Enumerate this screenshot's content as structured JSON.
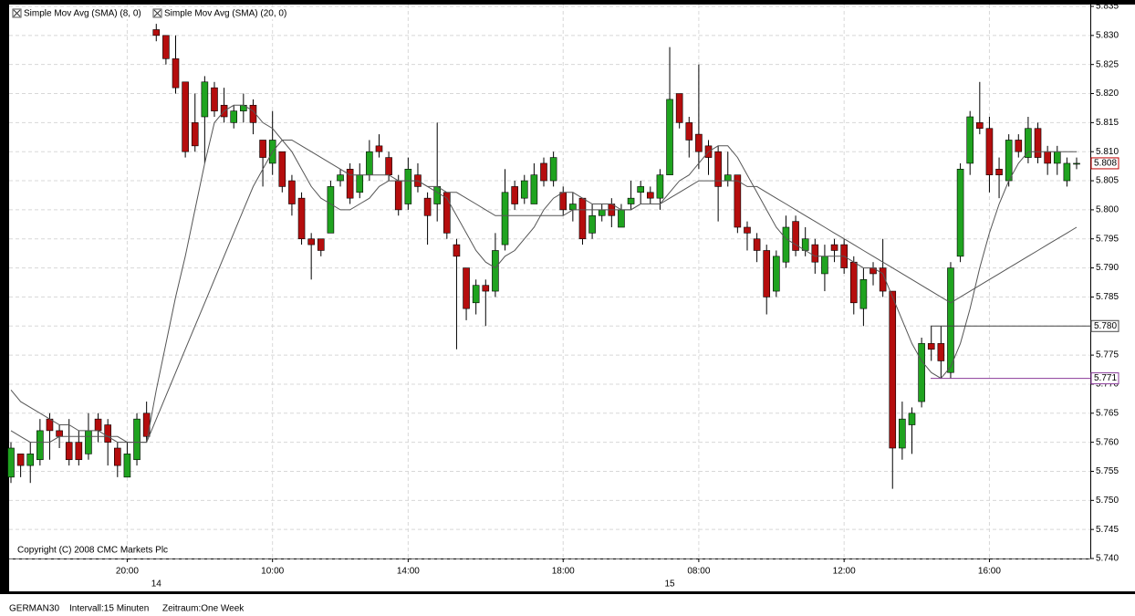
{
  "chart_data": {
    "type": "candlestick",
    "copyright": "Copyright (C) 2008 CMC Markets Plc",
    "footer": {
      "symbol": "GERMAN30",
      "interval": "Intervall:15 Minuten",
      "period": "Zeitraum:One Week"
    },
    "up_color": "#1fa31f",
    "down_color": "#b50d0d",
    "grid": true,
    "categories": [
      null,
      null,
      null,
      null,
      null,
      null,
      null,
      null,
      null,
      null,
      null,
      null,
      "20:00",
      null,
      null,
      null,
      null,
      null,
      null,
      null,
      null,
      null,
      null,
      null,
      null,
      null,
      null,
      "10:00",
      null,
      null,
      null,
      null,
      null,
      null,
      null,
      null,
      null,
      null,
      null,
      null,
      null,
      "14:00",
      null,
      null,
      null,
      null,
      null,
      null,
      null,
      null,
      null,
      null,
      null,
      null,
      null,
      null,
      null,
      "18:00",
      null,
      null,
      null,
      null,
      null,
      null,
      null,
      null,
      null,
      null,
      null,
      null,
      null,
      "08:00",
      null,
      null,
      null,
      null,
      null,
      null,
      null,
      null,
      null,
      null,
      null,
      null,
      null,
      null,
      "12:00",
      null,
      null,
      null,
      null,
      null,
      null,
      null,
      null,
      null,
      null,
      null,
      null,
      null,
      null,
      "16:00",
      null,
      null,
      null,
      null,
      null,
      null,
      null,
      null,
      null
    ],
    "day_labels": [
      null,
      null,
      null,
      null,
      null,
      null,
      null,
      null,
      null,
      null,
      null,
      null,
      null,
      null,
      null,
      "14",
      null,
      null,
      null,
      null,
      null,
      null,
      null,
      null,
      null,
      null,
      null,
      null,
      null,
      null,
      null,
      null,
      null,
      null,
      null,
      null,
      null,
      null,
      null,
      null,
      null,
      null,
      null,
      null,
      null,
      null,
      null,
      null,
      null,
      null,
      null,
      null,
      null,
      null,
      null,
      null,
      null,
      null,
      null,
      null,
      null,
      null,
      null,
      null,
      null,
      null,
      null,
      null,
      "15",
      null,
      null,
      null,
      null,
      null,
      null,
      null,
      null,
      null,
      null,
      null,
      null,
      null,
      null,
      null,
      null,
      null,
      null,
      null,
      null,
      null,
      null,
      null,
      null,
      null,
      null,
      null,
      null,
      null,
      null,
      null,
      null,
      null,
      null,
      null,
      null,
      null,
      null,
      null,
      null,
      null,
      null
    ],
    "open": [
      5.754,
      5.758,
      5.756,
      5.757,
      5.764,
      5.762,
      5.76,
      5.76,
      5.758,
      5.764,
      5.763,
      5.759,
      5.754,
      5.757,
      5.765,
      5.831,
      5.83,
      5.826,
      5.822,
      5.815,
      5.816,
      5.821,
      5.818,
      5.815,
      5.817,
      5.818,
      5.812,
      5.808,
      5.81,
      5.805,
      5.802,
      5.795,
      5.795,
      5.796,
      5.805,
      5.807,
      5.803,
      5.806,
      5.811,
      5.809,
      5.805,
      5.801,
      5.806,
      5.802,
      5.801,
      5.803,
      5.794,
      5.79,
      5.784,
      5.787,
      5.786,
      5.794,
      5.804,
      5.802,
      5.801,
      5.808,
      5.805,
      5.803,
      5.8,
      5.802,
      5.796,
      5.799,
      5.801,
      5.797,
      5.801,
      5.803,
      5.803,
      5.802,
      5.806,
      5.82,
      5.815,
      5.813,
      5.811,
      5.81,
      5.805,
      5.806,
      5.797,
      5.795,
      5.793,
      5.786,
      5.791,
      5.798,
      5.793,
      5.794,
      5.789,
      5.794,
      5.794,
      5.791,
      5.783,
      5.79,
      5.79,
      5.786,
      5.759,
      5.763,
      5.767,
      5.777,
      5.777,
      5.772,
      5.792,
      5.808,
      5.815,
      5.814,
      5.807,
      5.805,
      5.812,
      5.809,
      5.814,
      5.81,
      5.808,
      5.805,
      5.808
    ],
    "high": [
      5.76,
      5.758,
      5.76,
      5.764,
      5.765,
      5.763,
      5.764,
      5.762,
      5.765,
      5.765,
      5.764,
      5.76,
      5.76,
      5.765,
      5.767,
      5.832,
      5.83,
      5.83,
      5.822,
      5.82,
      5.823,
      5.822,
      5.821,
      5.818,
      5.82,
      5.819,
      5.812,
      5.817,
      5.81,
      5.806,
      5.803,
      5.796,
      5.795,
      5.805,
      5.807,
      5.808,
      5.808,
      5.812,
      5.813,
      5.81,
      5.806,
      5.809,
      5.808,
      5.803,
      5.815,
      5.803,
      5.795,
      5.79,
      5.788,
      5.788,
      5.796,
      5.807,
      5.805,
      5.806,
      5.808,
      5.809,
      5.81,
      5.804,
      5.803,
      5.802,
      5.801,
      5.801,
      5.802,
      5.801,
      5.805,
      5.805,
      5.804,
      5.807,
      5.828,
      5.82,
      5.816,
      5.825,
      5.812,
      5.811,
      5.81,
      5.806,
      5.798,
      5.796,
      5.794,
      5.793,
      5.799,
      5.799,
      5.797,
      5.795,
      5.794,
      5.795,
      5.795,
      5.792,
      5.79,
      5.791,
      5.795,
      5.786,
      5.767,
      5.766,
      5.778,
      5.78,
      5.78,
      5.791,
      5.808,
      5.817,
      5.822,
      5.816,
      5.809,
      5.813,
      5.813,
      5.816,
      5.815,
      5.811,
      5.811,
      5.809,
      5.809
    ],
    "low": [
      5.753,
      5.754,
      5.753,
      5.756,
      5.757,
      5.759,
      5.756,
      5.756,
      5.757,
      5.76,
      5.756,
      5.754,
      5.754,
      5.756,
      5.76,
      5.829,
      5.825,
      5.82,
      5.809,
      5.81,
      5.808,
      5.816,
      5.815,
      5.814,
      5.815,
      5.813,
      5.804,
      5.806,
      5.803,
      5.799,
      5.794,
      5.788,
      5.792,
      5.796,
      5.804,
      5.801,
      5.802,
      5.805,
      5.809,
      5.805,
      5.799,
      5.8,
      5.803,
      5.794,
      5.798,
      5.795,
      5.776,
      5.781,
      5.782,
      5.78,
      5.785,
      5.793,
      5.8,
      5.801,
      5.801,
      5.804,
      5.804,
      5.799,
      5.798,
      5.794,
      5.795,
      5.798,
      5.797,
      5.797,
      5.8,
      5.801,
      5.801,
      5.8,
      5.806,
      5.814,
      5.809,
      5.807,
      5.806,
      5.798,
      5.804,
      5.796,
      5.793,
      5.791,
      5.782,
      5.785,
      5.79,
      5.792,
      5.792,
      5.789,
      5.786,
      5.791,
      5.789,
      5.782,
      5.78,
      5.787,
      5.785,
      5.752,
      5.757,
      5.758,
      5.766,
      5.774,
      5.771,
      5.771,
      5.791,
      5.806,
      5.813,
      5.803,
      5.802,
      5.804,
      5.809,
      5.808,
      5.808,
      5.806,
      5.806,
      5.804,
      5.807
    ],
    "close": [
      5.759,
      5.756,
      5.758,
      5.762,
      5.762,
      5.761,
      5.757,
      5.757,
      5.762,
      5.762,
      5.76,
      5.756,
      5.758,
      5.764,
      5.761,
      5.83,
      5.826,
      5.821,
      5.81,
      5.811,
      5.822,
      5.817,
      5.816,
      5.817,
      5.818,
      5.815,
      5.809,
      5.812,
      5.804,
      5.801,
      5.795,
      5.794,
      5.793,
      5.804,
      5.806,
      5.802,
      5.806,
      5.81,
      5.81,
      5.806,
      5.8,
      5.807,
      5.804,
      5.799,
      5.804,
      5.796,
      5.792,
      5.783,
      5.787,
      5.786,
      5.793,
      5.803,
      5.801,
      5.805,
      5.806,
      5.805,
      5.809,
      5.8,
      5.801,
      5.795,
      5.799,
      5.8,
      5.799,
      5.8,
      5.802,
      5.804,
      5.802,
      5.806,
      5.819,
      5.815,
      5.812,
      5.81,
      5.809,
      5.804,
      5.806,
      5.797,
      5.796,
      5.793,
      5.785,
      5.792,
      5.797,
      5.793,
      5.795,
      5.791,
      5.792,
      5.793,
      5.79,
      5.784,
      5.788,
      5.789,
      5.786,
      5.759,
      5.764,
      5.765,
      5.777,
      5.776,
      5.774,
      5.79,
      5.807,
      5.816,
      5.814,
      5.806,
      5.806,
      5.812,
      5.81,
      5.814,
      5.809,
      5.808,
      5.81,
      5.808,
      5.808
    ],
    "series": [
      {
        "name": "Simple Mov Avg (SMA) (8, 0)",
        "color": "#555555",
        "values": [
          5.762,
          5.761,
          5.76,
          5.76,
          5.76,
          5.761,
          5.761,
          5.761,
          5.761,
          5.761,
          5.761,
          5.76,
          5.76,
          5.76,
          5.76,
          5.769,
          5.777,
          5.785,
          5.792,
          5.8,
          5.808,
          5.815,
          5.817,
          5.818,
          5.818,
          5.817,
          5.815,
          5.814,
          5.812,
          5.81,
          5.807,
          5.804,
          5.802,
          5.801,
          5.8,
          5.8,
          5.801,
          5.802,
          5.804,
          5.805,
          5.805,
          5.805,
          5.805,
          5.804,
          5.803,
          5.802,
          5.799,
          5.796,
          5.793,
          5.791,
          5.79,
          5.792,
          5.793,
          5.795,
          5.797,
          5.8,
          5.802,
          5.803,
          5.803,
          5.802,
          5.801,
          5.801,
          5.801,
          5.8,
          5.8,
          5.801,
          5.801,
          5.801,
          5.803,
          5.805,
          5.806,
          5.808,
          5.81,
          5.811,
          5.811,
          5.809,
          5.806,
          5.803,
          5.8,
          5.797,
          5.795,
          5.794,
          5.793,
          5.792,
          5.792,
          5.792,
          5.792,
          5.791,
          5.79,
          5.79,
          5.789,
          5.785,
          5.781,
          5.777,
          5.774,
          5.772,
          5.771,
          5.773,
          5.777,
          5.783,
          5.79,
          5.796,
          5.801,
          5.805,
          5.808,
          5.81,
          5.81,
          5.81,
          5.81,
          5.81,
          5.81
        ]
      },
      {
        "name": "Simple Mov Avg (SMA) (20, 0)",
        "color": "#555555",
        "values": [
          5.769,
          5.767,
          5.766,
          5.765,
          5.764,
          5.763,
          5.763,
          5.762,
          5.762,
          5.762,
          5.761,
          5.761,
          5.76,
          5.76,
          5.76,
          5.764,
          5.768,
          5.772,
          5.776,
          5.78,
          5.784,
          5.788,
          5.792,
          5.796,
          5.8,
          5.804,
          5.807,
          5.81,
          5.812,
          5.812,
          5.811,
          5.81,
          5.809,
          5.808,
          5.807,
          5.806,
          5.806,
          5.806,
          5.806,
          5.806,
          5.805,
          5.805,
          5.805,
          5.804,
          5.804,
          5.803,
          5.803,
          5.802,
          5.801,
          5.8,
          5.799,
          5.799,
          5.799,
          5.799,
          5.799,
          5.799,
          5.799,
          5.799,
          5.8,
          5.8,
          5.8,
          5.8,
          5.8,
          5.8,
          5.8,
          5.801,
          5.801,
          5.801,
          5.802,
          5.803,
          5.804,
          5.805,
          5.805,
          5.805,
          5.805,
          5.805,
          5.804,
          5.804,
          5.803,
          5.802,
          5.801,
          5.8,
          5.799,
          5.798,
          5.797,
          5.796,
          5.795,
          5.794,
          5.793,
          5.792,
          5.791,
          5.79,
          5.789,
          5.788,
          5.787,
          5.786,
          5.785,
          5.784,
          5.785,
          5.786,
          5.787,
          5.788,
          5.789,
          5.79,
          5.791,
          5.792,
          5.793,
          5.794,
          5.795,
          5.796,
          5.797
        ]
      }
    ],
    "levels": [
      {
        "value": 5.78,
        "label": "5.780",
        "color": "#444444"
      },
      {
        "value": 5.771,
        "label": "5.771",
        "color": "#8a3a9a"
      }
    ],
    "last_price": {
      "value": 5.808,
      "label": "5.808",
      "color": "#c00000"
    },
    "ylim": [
      5.74,
      5.835
    ],
    "yticks": [
      {
        "value": 5.74,
        "label": "5.740"
      },
      {
        "value": 5.745,
        "label": "5.745"
      },
      {
        "value": 5.75,
        "label": "5.750"
      },
      {
        "value": 5.755,
        "label": "5.755"
      },
      {
        "value": 5.76,
        "label": "5.760"
      },
      {
        "value": 5.765,
        "label": "5.765"
      },
      {
        "value": 5.77,
        "label": "5.770"
      },
      {
        "value": 5.775,
        "label": "5.775"
      },
      {
        "value": 5.78,
        "label": "5.780"
      },
      {
        "value": 5.785,
        "label": "5.785"
      },
      {
        "value": 5.79,
        "label": "5.790"
      },
      {
        "value": 5.795,
        "label": "5.795"
      },
      {
        "value": 5.8,
        "label": "5.800"
      },
      {
        "value": 5.805,
        "label": "5.805"
      },
      {
        "value": 5.81,
        "label": "5.810"
      },
      {
        "value": 5.815,
        "label": "5.815"
      },
      {
        "value": 5.82,
        "label": "5.820"
      },
      {
        "value": 5.825,
        "label": "5.825"
      },
      {
        "value": 5.83,
        "label": "5.830"
      },
      {
        "value": 5.835,
        "label": "5.835"
      }
    ]
  }
}
